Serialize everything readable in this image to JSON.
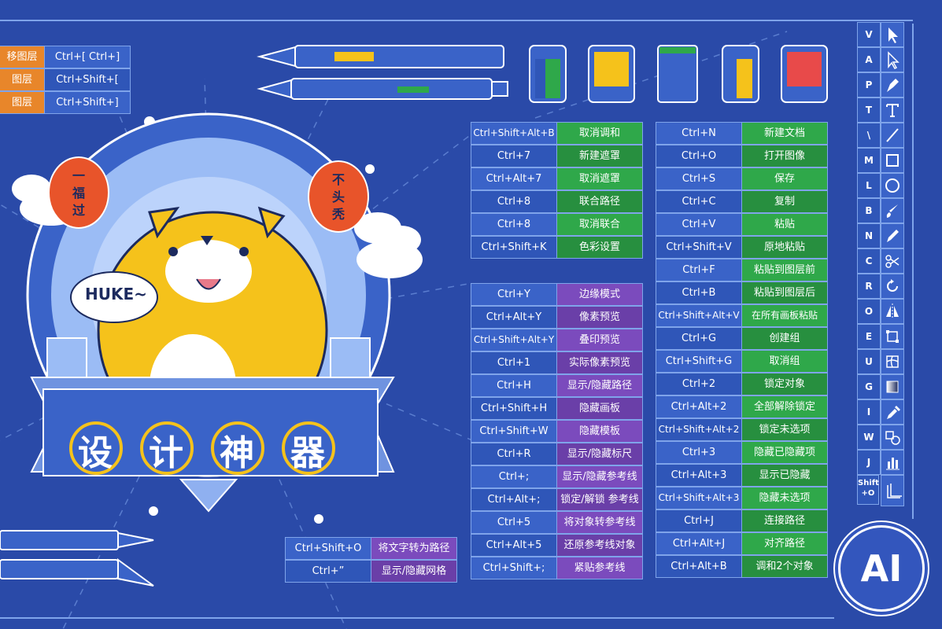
{
  "top_left_rows": [
    {
      "action": "移图层",
      "key": "Ctrl+[ Ctrl+]"
    },
    {
      "action": "图层",
      "key": "Ctrl+Shift+["
    },
    {
      "action": "图层",
      "key": "Ctrl+Shift+]"
    }
  ],
  "table_a": [
    {
      "key": "Ctrl+Shift+Alt+B",
      "action": "取消调和"
    },
    {
      "key": "Ctrl+7",
      "action": "新建遮罩"
    },
    {
      "key": "Ctrl+Alt+7",
      "action": "取消遮罩"
    },
    {
      "key": "Ctrl+8",
      "action": "联合路径"
    },
    {
      "key": "Ctrl+8",
      "action": "取消联合"
    },
    {
      "key": "Ctrl+Shift+K",
      "action": "色彩设置"
    }
  ],
  "table_b": [
    {
      "key": "Ctrl+Y",
      "action": "边缘模式"
    },
    {
      "key": "Ctrl+Alt+Y",
      "action": "像素预览"
    },
    {
      "key": "Ctrl+Shift+Alt+Y",
      "action": "叠印预览"
    },
    {
      "key": "Ctrl+1",
      "action": "实际像素预览"
    },
    {
      "key": "Ctrl+H",
      "action": "显示/隐藏路径"
    },
    {
      "key": "Ctrl+Shift+H",
      "action": "隐藏画板"
    },
    {
      "key": "Ctrl+Shift+W",
      "action": "隐藏模板"
    },
    {
      "key": "Ctrl+R",
      "action": "显示/隐藏标尺"
    },
    {
      "key": "Ctrl+;",
      "action": "显示/隐藏参考线"
    },
    {
      "key": "Ctrl+Alt+;",
      "action": "锁定/解锁 参考线"
    },
    {
      "key": "Ctrl+5",
      "action": "将对象转参考线"
    },
    {
      "key": "Ctrl+Alt+5",
      "action": "还原参考线对象"
    },
    {
      "key": "Ctrl+Shift+;",
      "action": "紧贴参考线"
    }
  ],
  "table_c": [
    {
      "key": "Ctrl+Shift+O",
      "action": "将文字转为路径"
    },
    {
      "key": "Ctrl+”",
      "action": "显示/隐藏网格"
    }
  ],
  "table_d": [
    {
      "key": "Ctrl+N",
      "action": "新建文档"
    },
    {
      "key": "Ctrl+O",
      "action": "打开图像"
    },
    {
      "key": "Ctrl+S",
      "action": "保存"
    },
    {
      "key": "Ctrl+C",
      "action": "复制"
    },
    {
      "key": "Ctrl+V",
      "action": "粘贴"
    },
    {
      "key": "Ctrl+Shift+V",
      "action": "原地粘贴"
    },
    {
      "key": "Ctrl+F",
      "action": "粘贴到图层前"
    },
    {
      "key": "Ctrl+B",
      "action": "粘贴到图层后"
    },
    {
      "key": "Ctrl+Shift+Alt+V",
      "action": "在所有画板粘贴"
    },
    {
      "key": "Ctrl+G",
      "action": "创建组"
    },
    {
      "key": "Ctrl+Shift+G",
      "action": "取消组"
    },
    {
      "key": "Ctrl+2",
      "action": "锁定对象"
    },
    {
      "key": "Ctrl+Alt+2",
      "action": "全部解除锁定"
    },
    {
      "key": "Ctrl+Shift+Alt+2",
      "action": "锁定未选项"
    },
    {
      "key": "Ctrl+3",
      "action": "隐藏已隐藏项"
    },
    {
      "key": "Ctrl+Alt+3",
      "action": "显示已隐藏"
    },
    {
      "key": "Ctrl+Shift+Alt+3",
      "action": "隐藏未选项"
    },
    {
      "key": "Ctrl+J",
      "action": "连接路径"
    },
    {
      "key": "Ctrl+Alt+J",
      "action": "对齐路径"
    },
    {
      "key": "Ctrl+Alt+B",
      "action": "调和2个对象"
    }
  ],
  "tools": [
    {
      "key": "V",
      "icon": "selection-arrow-icon"
    },
    {
      "key": "A",
      "icon": "direct-selection-icon"
    },
    {
      "key": "P",
      "icon": "pen-icon"
    },
    {
      "key": "T",
      "icon": "type-icon"
    },
    {
      "key": "\\",
      "icon": "line-icon"
    },
    {
      "key": "M",
      "icon": "rectangle-icon"
    },
    {
      "key": "L",
      "icon": "ellipse-icon"
    },
    {
      "key": "B",
      "icon": "brush-icon"
    },
    {
      "key": "N",
      "icon": "pencil-icon"
    },
    {
      "key": "C",
      "icon": "scissors-icon"
    },
    {
      "key": "R",
      "icon": "rotate-icon"
    },
    {
      "key": "O",
      "icon": "reflect-icon"
    },
    {
      "key": "E",
      "icon": "free-transform-icon"
    },
    {
      "key": "U",
      "icon": "mesh-icon"
    },
    {
      "key": "G",
      "icon": "gradient-icon"
    },
    {
      "key": "I",
      "icon": "eyedropper-icon"
    },
    {
      "key": "W",
      "icon": "blend-icon"
    },
    {
      "key": "J",
      "icon": "graph-icon"
    },
    {
      "key": "Shift +O",
      "icon": "artboard-icon"
    }
  ],
  "banner": {
    "c1": "设",
    "c2": "计",
    "c3": "神",
    "c4": "器"
  },
  "speech_bubble": "HUKE~",
  "lanterns": {
    "left": [
      "一",
      "福",
      "过"
    ],
    "right": [
      "不",
      "头",
      "秃"
    ]
  },
  "logo_text": "AI",
  "colors": {
    "background": "#2a4aa8",
    "key_cell": "#3a63c8",
    "green": "#2fa84a",
    "purple": "#7b4bbd",
    "orange": "#e8862a",
    "tiger": "#f5c21b"
  }
}
